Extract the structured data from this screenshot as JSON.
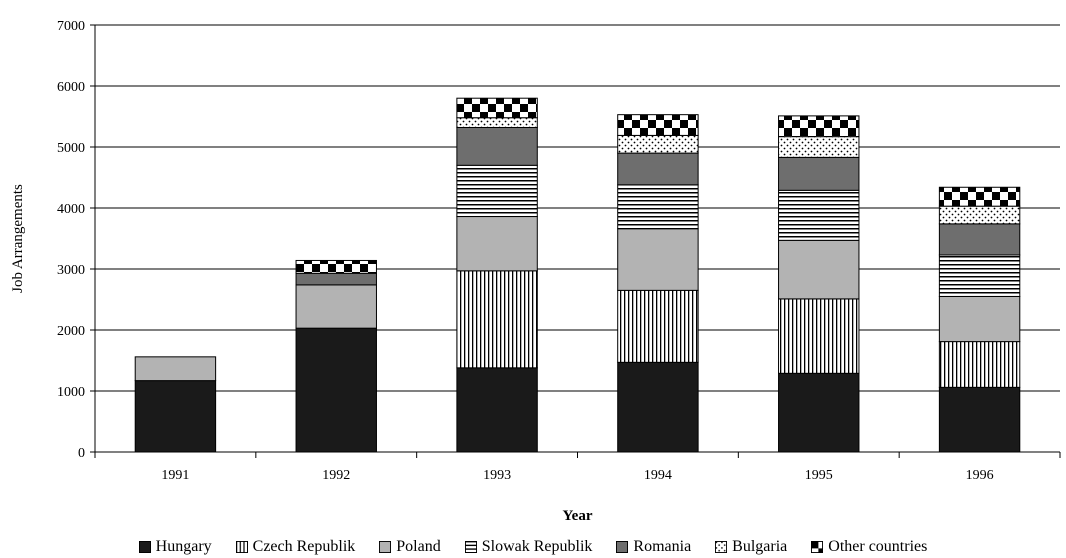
{
  "chart_data": {
    "type": "bar",
    "stacked": true,
    "title": "",
    "xlabel": "Year",
    "ylabel": "Job Arrangements",
    "ylim": [
      0,
      7000
    ],
    "yticks": [
      0,
      1000,
      2000,
      3000,
      4000,
      5000,
      6000,
      7000
    ],
    "grid": "horizontal",
    "legend_position": "bottom",
    "categories": [
      "1991",
      "1992",
      "1993",
      "1994",
      "1995",
      "1996"
    ],
    "series": [
      {
        "name": "Hungary",
        "pattern": "solid-dark",
        "color": "#1a1a1a",
        "values": [
          1170,
          2030,
          1380,
          1470,
          1290,
          1060
        ]
      },
      {
        "name": "Czech Republik",
        "pattern": "vertical-lines",
        "color": "#000000",
        "values": [
          0,
          0,
          1590,
          1180,
          1220,
          750
        ]
      },
      {
        "name": "Poland",
        "pattern": "solid-light",
        "color": "#b3b3b3",
        "values": [
          390,
          710,
          890,
          1010,
          960,
          740
        ]
      },
      {
        "name": "Slowak Republik",
        "pattern": "horizontal-lines",
        "color": "#000000",
        "values": [
          0,
          0,
          840,
          720,
          820,
          680
        ]
      },
      {
        "name": "Romania",
        "pattern": "solid-mid",
        "color": "#6e6e6e",
        "values": [
          0,
          190,
          620,
          520,
          540,
          510
        ]
      },
      {
        "name": "Bulgaria",
        "pattern": "dots",
        "color": "#ffffff",
        "values": [
          0,
          0,
          160,
          290,
          340,
          290
        ]
      },
      {
        "name": "Other countries",
        "pattern": "checker",
        "color": "#000000",
        "values": [
          0,
          210,
          320,
          340,
          340,
          310
        ]
      }
    ]
  }
}
